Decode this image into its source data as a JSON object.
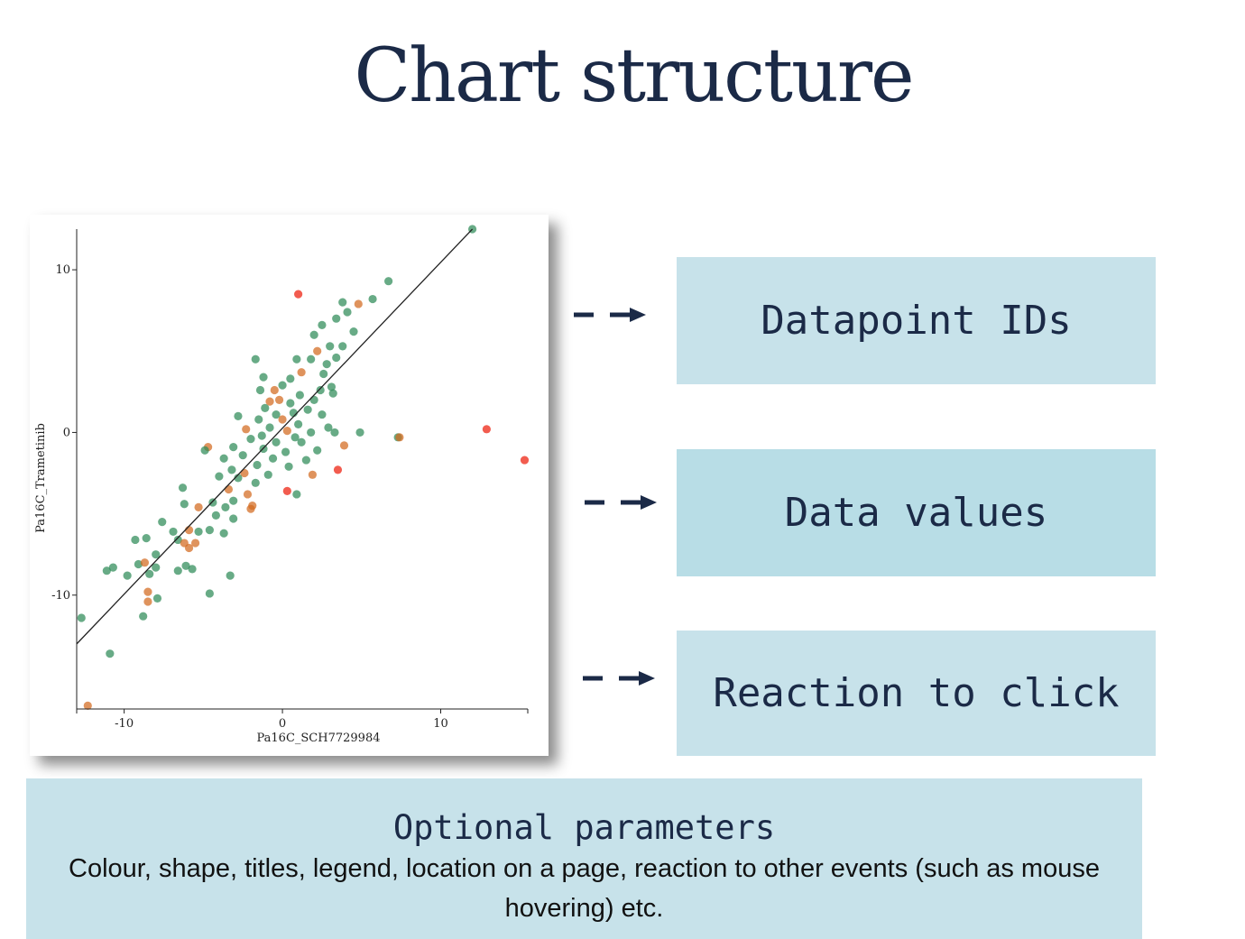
{
  "title": "Chart structure",
  "boxes": {
    "datapoint_ids": "Datapoint IDs",
    "data_values": "Data values",
    "reaction": "Reaction to click"
  },
  "optional": {
    "heading": "Optional parameters",
    "description": "Colour, shape, titles, legend, location on a page, reaction to other events (such as mouse hovering) etc."
  },
  "colors": {
    "title": "#1b2a47",
    "box_fill": "#c7e2ea",
    "arrow": "#1b2a47",
    "point_green": "#2e8b57",
    "point_orange": "#d2691e",
    "point_red": "#f04030"
  },
  "chart_data": {
    "type": "scatter",
    "xlabel": "Pa16C_SCH7729984",
    "ylabel": "Pa16C_Trametinib",
    "xlim": [
      -13,
      15.5
    ],
    "ylim": [
      -17,
      12.5
    ],
    "xticks": [
      "-10",
      "0",
      "10"
    ],
    "yticks": [
      "10",
      "0",
      "-10"
    ],
    "fit_line": {
      "x": [
        -13,
        12
      ],
      "y": [
        -13,
        12.5
      ]
    },
    "points": [
      {
        "x": 12,
        "y": 12.5,
        "group": "green"
      },
      {
        "x": 1,
        "y": 8.5,
        "group": "red"
      },
      {
        "x": 6.7,
        "y": 9.3,
        "group": "green"
      },
      {
        "x": 5.7,
        "y": 8.2,
        "group": "green"
      },
      {
        "x": 4.8,
        "y": 7.9,
        "group": "orange"
      },
      {
        "x": 3.8,
        "y": 8,
        "group": "green"
      },
      {
        "x": 4.1,
        "y": 7.4,
        "group": "green"
      },
      {
        "x": 3.4,
        "y": 7,
        "group": "green"
      },
      {
        "x": 4.5,
        "y": 6.2,
        "group": "green"
      },
      {
        "x": 2.5,
        "y": 6.6,
        "group": "green"
      },
      {
        "x": 2,
        "y": 6,
        "group": "green"
      },
      {
        "x": 3.8,
        "y": 5.3,
        "group": "green"
      },
      {
        "x": 3,
        "y": 5.3,
        "group": "green"
      },
      {
        "x": 2.2,
        "y": 5,
        "group": "orange"
      },
      {
        "x": 1.8,
        "y": 4.5,
        "group": "green"
      },
      {
        "x": 3.4,
        "y": 4.6,
        "group": "green"
      },
      {
        "x": 0.9,
        "y": 4.5,
        "group": "green"
      },
      {
        "x": 2.8,
        "y": 4.2,
        "group": "green"
      },
      {
        "x": -1.7,
        "y": 4.5,
        "group": "green"
      },
      {
        "x": 1.2,
        "y": 3.7,
        "group": "orange"
      },
      {
        "x": 2.6,
        "y": 3.6,
        "group": "green"
      },
      {
        "x": 0.5,
        "y": 3.3,
        "group": "green"
      },
      {
        "x": -1.2,
        "y": 3.4,
        "group": "green"
      },
      {
        "x": 3.1,
        "y": 2.8,
        "group": "green"
      },
      {
        "x": 2.4,
        "y": 2.6,
        "group": "green"
      },
      {
        "x": 3.2,
        "y": 2.4,
        "group": "green"
      },
      {
        "x": 0,
        "y": 2.9,
        "group": "green"
      },
      {
        "x": -0.5,
        "y": 2.6,
        "group": "orange"
      },
      {
        "x": -1.4,
        "y": 2.6,
        "group": "green"
      },
      {
        "x": 1.1,
        "y": 2.3,
        "group": "green"
      },
      {
        "x": -0.2,
        "y": 2,
        "group": "orange"
      },
      {
        "x": 0.5,
        "y": 1.8,
        "group": "green"
      },
      {
        "x": 2,
        "y": 2,
        "group": "green"
      },
      {
        "x": -1.1,
        "y": 1.5,
        "group": "green"
      },
      {
        "x": -0.8,
        "y": 1.9,
        "group": "orange"
      },
      {
        "x": 1.6,
        "y": 1.4,
        "group": "green"
      },
      {
        "x": 0.7,
        "y": 1.2,
        "group": "green"
      },
      {
        "x": -0.4,
        "y": 1.1,
        "group": "green"
      },
      {
        "x": 2.5,
        "y": 1.1,
        "group": "green"
      },
      {
        "x": -2.8,
        "y": 1,
        "group": "green"
      },
      {
        "x": -1.5,
        "y": 0.8,
        "group": "green"
      },
      {
        "x": 0,
        "y": 0.8,
        "group": "orange"
      },
      {
        "x": 1,
        "y": 0.5,
        "group": "green"
      },
      {
        "x": 2.9,
        "y": 0.3,
        "group": "green"
      },
      {
        "x": -2.3,
        "y": 0.2,
        "group": "orange"
      },
      {
        "x": -0.8,
        "y": 0.3,
        "group": "green"
      },
      {
        "x": 0.3,
        "y": 0.1,
        "group": "orange"
      },
      {
        "x": 1.8,
        "y": 0,
        "group": "green"
      },
      {
        "x": -1.3,
        "y": -0.2,
        "group": "green"
      },
      {
        "x": 0.8,
        "y": -0.3,
        "group": "green"
      },
      {
        "x": 3.3,
        "y": 0,
        "group": "green"
      },
      {
        "x": 4.9,
        "y": 0,
        "group": "green"
      },
      {
        "x": 7.3,
        "y": -0.3,
        "group": "green"
      },
      {
        "x": 7.4,
        "y": -0.3,
        "group": "orange"
      },
      {
        "x": 12.9,
        "y": 0.2,
        "group": "red"
      },
      {
        "x": 15.3,
        "y": -1.7,
        "group": "red"
      },
      {
        "x": -2,
        "y": -0.4,
        "group": "green"
      },
      {
        "x": -0.4,
        "y": -0.6,
        "group": "green"
      },
      {
        "x": 1.2,
        "y": -0.6,
        "group": "green"
      },
      {
        "x": 3.9,
        "y": -0.8,
        "group": "orange"
      },
      {
        "x": -3.1,
        "y": -0.9,
        "group": "green"
      },
      {
        "x": -1.2,
        "y": -1,
        "group": "green"
      },
      {
        "x": 0.2,
        "y": -1.2,
        "group": "green"
      },
      {
        "x": 2.2,
        "y": -1.1,
        "group": "green"
      },
      {
        "x": -4.7,
        "y": -0.9,
        "group": "orange"
      },
      {
        "x": -4.9,
        "y": -1.1,
        "group": "green"
      },
      {
        "x": -2.5,
        "y": -1.4,
        "group": "green"
      },
      {
        "x": -0.6,
        "y": -1.6,
        "group": "green"
      },
      {
        "x": 1.5,
        "y": -1.7,
        "group": "green"
      },
      {
        "x": -3.7,
        "y": -1.6,
        "group": "green"
      },
      {
        "x": -1.6,
        "y": -2,
        "group": "green"
      },
      {
        "x": 0.4,
        "y": -2.1,
        "group": "green"
      },
      {
        "x": 3.5,
        "y": -2.3,
        "group": "red"
      },
      {
        "x": -3.2,
        "y": -2.3,
        "group": "green"
      },
      {
        "x": -2.4,
        "y": -2.5,
        "group": "orange"
      },
      {
        "x": -0.9,
        "y": -2.6,
        "group": "green"
      },
      {
        "x": 1.9,
        "y": -2.6,
        "group": "orange"
      },
      {
        "x": -4,
        "y": -2.7,
        "group": "green"
      },
      {
        "x": -2.8,
        "y": -2.8,
        "group": "green"
      },
      {
        "x": -1.7,
        "y": -3.1,
        "group": "green"
      },
      {
        "x": -6.3,
        "y": -3.4,
        "group": "green"
      },
      {
        "x": -3.4,
        "y": -3.5,
        "group": "orange"
      },
      {
        "x": 0.3,
        "y": -3.6,
        "group": "red"
      },
      {
        "x": 0.9,
        "y": -3.8,
        "group": "green"
      },
      {
        "x": -2.2,
        "y": -3.8,
        "group": "orange"
      },
      {
        "x": -6.2,
        "y": -4.4,
        "group": "green"
      },
      {
        "x": -4.4,
        "y": -4.3,
        "group": "green"
      },
      {
        "x": -3.1,
        "y": -4.2,
        "group": "green"
      },
      {
        "x": -5.3,
        "y": -4.6,
        "group": "orange"
      },
      {
        "x": -3.6,
        "y": -4.6,
        "group": "green"
      },
      {
        "x": -2,
        "y": -4.7,
        "group": "orange"
      },
      {
        "x": -1.9,
        "y": -4.5,
        "group": "orange"
      },
      {
        "x": -4.2,
        "y": -5.1,
        "group": "green"
      },
      {
        "x": -3.1,
        "y": -5.3,
        "group": "green"
      },
      {
        "x": -7.6,
        "y": -5.5,
        "group": "green"
      },
      {
        "x": -6.9,
        "y": -6.1,
        "group": "green"
      },
      {
        "x": -5.9,
        "y": -6,
        "group": "orange"
      },
      {
        "x": -5.3,
        "y": -6.1,
        "group": "green"
      },
      {
        "x": -4.6,
        "y": -6,
        "group": "green"
      },
      {
        "x": -3.7,
        "y": -6.2,
        "group": "green"
      },
      {
        "x": -6.6,
        "y": -6.6,
        "group": "green"
      },
      {
        "x": -6.2,
        "y": -6.8,
        "group": "orange"
      },
      {
        "x": -5.5,
        "y": -6.8,
        "group": "orange"
      },
      {
        "x": -9.3,
        "y": -6.6,
        "group": "green"
      },
      {
        "x": -8.6,
        "y": -6.5,
        "group": "green"
      },
      {
        "x": -5.9,
        "y": -7.1,
        "group": "orange"
      },
      {
        "x": -8,
        "y": -7.5,
        "group": "green"
      },
      {
        "x": -9.1,
        "y": -8.1,
        "group": "green"
      },
      {
        "x": -8.7,
        "y": -8,
        "group": "orange"
      },
      {
        "x": -8,
        "y": -8.3,
        "group": "green"
      },
      {
        "x": -11.1,
        "y": -8.5,
        "group": "green"
      },
      {
        "x": -10.7,
        "y": -8.3,
        "group": "green"
      },
      {
        "x": -9.8,
        "y": -8.8,
        "group": "green"
      },
      {
        "x": -8.4,
        "y": -8.7,
        "group": "green"
      },
      {
        "x": -6.6,
        "y": -8.5,
        "group": "green"
      },
      {
        "x": -6.1,
        "y": -8.2,
        "group": "green"
      },
      {
        "x": -5.7,
        "y": -8.4,
        "group": "green"
      },
      {
        "x": -3.3,
        "y": -8.8,
        "group": "green"
      },
      {
        "x": -8.5,
        "y": -9.8,
        "group": "orange"
      },
      {
        "x": -8.5,
        "y": -10.4,
        "group": "orange"
      },
      {
        "x": -7.9,
        "y": -10.2,
        "group": "green"
      },
      {
        "x": -4.6,
        "y": -9.9,
        "group": "green"
      },
      {
        "x": -8.8,
        "y": -11.3,
        "group": "green"
      },
      {
        "x": -12.7,
        "y": -11.4,
        "group": "green"
      },
      {
        "x": -10.9,
        "y": -13.6,
        "group": "green"
      },
      {
        "x": -12.3,
        "y": -16.8,
        "group": "orange"
      }
    ]
  }
}
